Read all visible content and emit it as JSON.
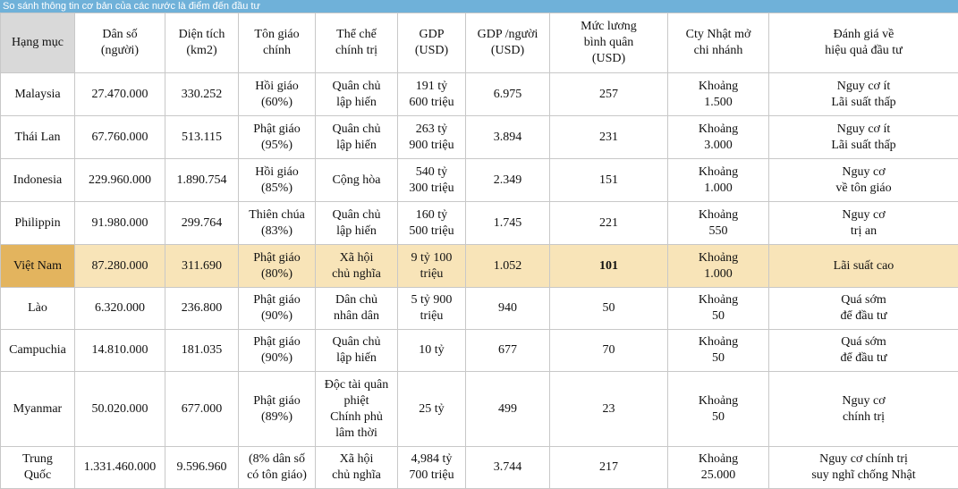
{
  "title": "So sánh thông tin cơ bản của các nước là điểm đến đầu tư",
  "headers": [
    [
      "Hạng mục"
    ],
    [
      "Dân số",
      "(người)"
    ],
    [
      "Diện tích",
      "(km2)"
    ],
    [
      "Tôn giáo",
      "chính"
    ],
    [
      "Thể chế",
      "chính trị"
    ],
    [
      "GDP",
      "(USD)"
    ],
    [
      "GDP /người",
      "(USD)"
    ],
    [
      "Mức lương",
      "bình quân",
      "(USD)"
    ],
    [
      "Cty Nhật mở",
      "chi nhánh"
    ],
    [
      "Đánh giá về",
      "hiệu quả đầu tư"
    ]
  ],
  "rows": [
    {
      "country": [
        "Malaysia"
      ],
      "population": [
        "27.470.000"
      ],
      "area": [
        "330.252"
      ],
      "religion": [
        "Hồi giáo",
        "(60%)"
      ],
      "regime": [
        "Quân chủ",
        "lập hiến"
      ],
      "gdp": [
        "191 tỷ",
        "600 triệu"
      ],
      "gdp_per_capita": [
        "6.975"
      ],
      "salary": [
        "257"
      ],
      "jp_companies": [
        "Khoảng",
        "1.500"
      ],
      "evaluation": [
        "Nguy cơ ít",
        "Lãi suất thấp"
      ]
    },
    {
      "country": [
        "Thái Lan"
      ],
      "population": [
        "67.760.000"
      ],
      "area": [
        "513.115"
      ],
      "religion": [
        "Phật giáo",
        "(95%)"
      ],
      "regime": [
        "Quân chủ",
        "lập hiến"
      ],
      "gdp": [
        "263 tỷ",
        "900 triệu"
      ],
      "gdp_per_capita": [
        "3.894"
      ],
      "salary": [
        "231"
      ],
      "jp_companies": [
        "Khoảng",
        "3.000"
      ],
      "evaluation": [
        "Nguy cơ ít",
        "Lãi suất thấp"
      ]
    },
    {
      "country": [
        "Indonesia"
      ],
      "population": [
        "229.960.000"
      ],
      "area": [
        "1.890.754"
      ],
      "religion": [
        "Hồi giáo",
        "(85%)"
      ],
      "regime": [
        "Cộng hòa"
      ],
      "gdp": [
        "540 tỷ",
        "300 triệu"
      ],
      "gdp_per_capita": [
        "2.349"
      ],
      "salary": [
        "151"
      ],
      "jp_companies": [
        "Khoảng",
        "1.000"
      ],
      "evaluation": [
        "Nguy cơ",
        "về tôn giáo"
      ]
    },
    {
      "country": [
        "Philippin"
      ],
      "population": [
        "91.980.000"
      ],
      "area": [
        "299.764"
      ],
      "religion": [
        "Thiên chúa",
        "(83%)"
      ],
      "regime": [
        "Quân chủ",
        "lập hiến"
      ],
      "gdp": [
        "160 tỷ",
        "500 triệu"
      ],
      "gdp_per_capita": [
        "1.745"
      ],
      "salary": [
        "221"
      ],
      "jp_companies": [
        "Khoảng",
        "550"
      ],
      "evaluation": [
        "Nguy cơ",
        "trị an"
      ]
    },
    {
      "country": [
        "Việt Nam"
      ],
      "population": [
        "87.280.000"
      ],
      "area": [
        "311.690"
      ],
      "religion": [
        "Phật giáo",
        "(80%)"
      ],
      "regime": [
        "Xã hội",
        "chủ nghĩa"
      ],
      "gdp": [
        "9 tỷ 100",
        "triệu"
      ],
      "gdp_per_capita": [
        "1.052"
      ],
      "salary": [
        "101"
      ],
      "jp_companies": [
        "Khoảng",
        "1.000"
      ],
      "evaluation": [
        "Lãi suất cao"
      ],
      "highlight": true
    },
    {
      "country": [
        "Lào"
      ],
      "population": [
        "6.320.000"
      ],
      "area": [
        "236.800"
      ],
      "religion": [
        "Phật giáo",
        "(90%)"
      ],
      "regime": [
        "Dân chủ",
        "nhân dân"
      ],
      "gdp": [
        "5 tỷ 900",
        "triệu"
      ],
      "gdp_per_capita": [
        "940"
      ],
      "salary": [
        "50"
      ],
      "jp_companies": [
        "Khoảng",
        "50"
      ],
      "evaluation": [
        "Quá sớm",
        "để đầu tư"
      ]
    },
    {
      "country": [
        "Campuchia"
      ],
      "population": [
        "14.810.000"
      ],
      "area": [
        "181.035"
      ],
      "religion": [
        "Phật giáo",
        "(90%)"
      ],
      "regime": [
        "Quân chủ",
        "lập hiến"
      ],
      "gdp": [
        "10 tỷ"
      ],
      "gdp_per_capita": [
        "677"
      ],
      "salary": [
        "70"
      ],
      "jp_companies": [
        "Khoảng",
        "50"
      ],
      "evaluation": [
        "Quá sớm",
        "để đầu tư"
      ]
    },
    {
      "country": [
        "Myanmar"
      ],
      "population": [
        "50.020.000"
      ],
      "area": [
        "677.000"
      ],
      "religion": [
        "Phật giáo",
        "(89%)"
      ],
      "regime": [
        "Độc tài quân",
        "phiệt",
        "Chính phủ",
        "lâm thời"
      ],
      "gdp": [
        "25 tỷ"
      ],
      "gdp_per_capita": [
        "499"
      ],
      "salary": [
        "23"
      ],
      "jp_companies": [
        "Khoảng",
        "50"
      ],
      "evaluation": [
        "Nguy cơ",
        "chính trị"
      ]
    },
    {
      "country": [
        "Trung",
        "Quốc"
      ],
      "population": [
        "1.331.460.000"
      ],
      "area": [
        "9.596.960"
      ],
      "religion": [
        "(8% dân số",
        "có tôn giáo)"
      ],
      "regime": [
        "Xã hội",
        "chủ nghĩa"
      ],
      "gdp": [
        "4,984 tỷ",
        "700 triệu"
      ],
      "gdp_per_capita": [
        "3.744"
      ],
      "salary": [
        "217"
      ],
      "jp_companies": [
        "Khoảng",
        "25.000"
      ],
      "evaluation": [
        "Nguy cơ chính trị",
        "suy nghĩ chống Nhật"
      ]
    }
  ]
}
